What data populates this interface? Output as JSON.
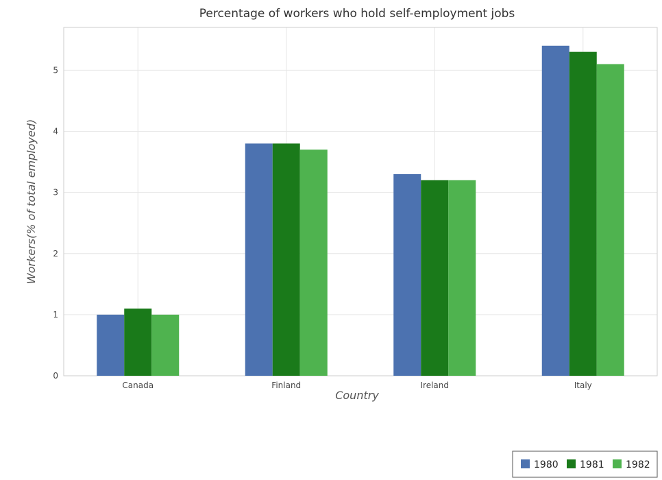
{
  "chart_data": {
    "type": "bar",
    "title": "Percentage of workers who hold self-employment jobs",
    "xlabel": "Country",
    "ylabel": "Workers(% of total employed)",
    "categories": [
      "Canada",
      "Finland",
      "Ireland",
      "Italy"
    ],
    "series": [
      {
        "name": "1980",
        "color": "#4c72b0",
        "values": [
          1.0,
          3.8,
          3.3,
          5.4
        ]
      },
      {
        "name": "1981",
        "color": "#1a7a1a",
        "values": [
          1.1,
          3.8,
          3.2,
          5.3
        ]
      },
      {
        "name": "1982",
        "color": "#4fb34f",
        "values": [
          1.0,
          3.7,
          3.2,
          5.1
        ]
      }
    ],
    "ylim": [
      0,
      5.7
    ],
    "yticks": [
      0,
      1,
      2,
      3,
      4,
      5
    ],
    "grid": true,
    "legend_position": "bottom-right"
  }
}
